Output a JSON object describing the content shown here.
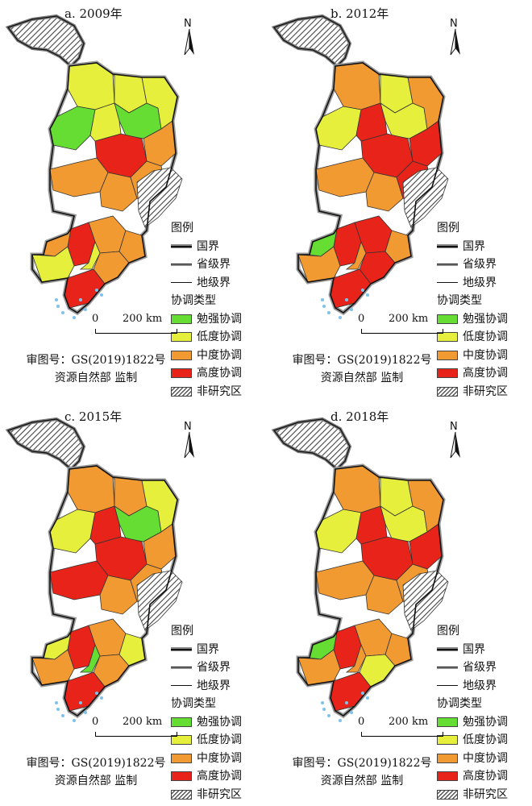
{
  "colors": {
    "weak": "#66dd33",
    "low": "#e6f03c",
    "mid": "#f19a32",
    "high": "#e8241a",
    "none": "#8a8a8a",
    "sea": "#7ec2ec"
  },
  "north_label": "N",
  "legend": {
    "title": "图例",
    "national": "国界",
    "provincial": "省级界",
    "prefectural": "地级界",
    "type_title": "协调类型",
    "weak": "勉强协调",
    "low": "低度协调",
    "mid": "中度协调",
    "high": "高度协调",
    "none": "非研究区"
  },
  "scale": {
    "zero": "0",
    "dist": "200 km"
  },
  "review_no": "审图号：GS(2019)1822号",
  "supervisor": "资源自然部 监制",
  "panels": [
    {
      "title": "a. 2009年",
      "regions": [
        "low",
        "low",
        "weak",
        "weak",
        "low",
        "high",
        "low",
        "mid",
        "mid",
        "mid",
        "mid",
        "high",
        "mid",
        "low",
        "mid",
        "high",
        "mid",
        "low",
        "mid"
      ]
    },
    {
      "title": "b. 2012年",
      "regions": [
        "mid",
        "low",
        "low",
        "low",
        "mid",
        "high",
        "high",
        "high",
        "mid",
        "mid",
        "high",
        "high",
        "high",
        "mid",
        "weak",
        "high",
        "high",
        "mid",
        "mid"
      ]
    },
    {
      "title": "c. 2015年",
      "regions": [
        "mid",
        "mid",
        "low",
        "weak",
        "low",
        "high",
        "high",
        "mid",
        "high",
        "mid",
        "mid",
        "high",
        "mid",
        "weak",
        "low",
        "high",
        "mid",
        "mid",
        "low"
      ]
    },
    {
      "title": "d. 2018年",
      "regions": [
        "mid",
        "low",
        "low",
        "low",
        "mid",
        "high",
        "high",
        "high",
        "mid",
        "mid",
        "mid",
        "high",
        "mid",
        "mid",
        "weak",
        "high",
        "low",
        "mid",
        "mid"
      ]
    }
  ]
}
